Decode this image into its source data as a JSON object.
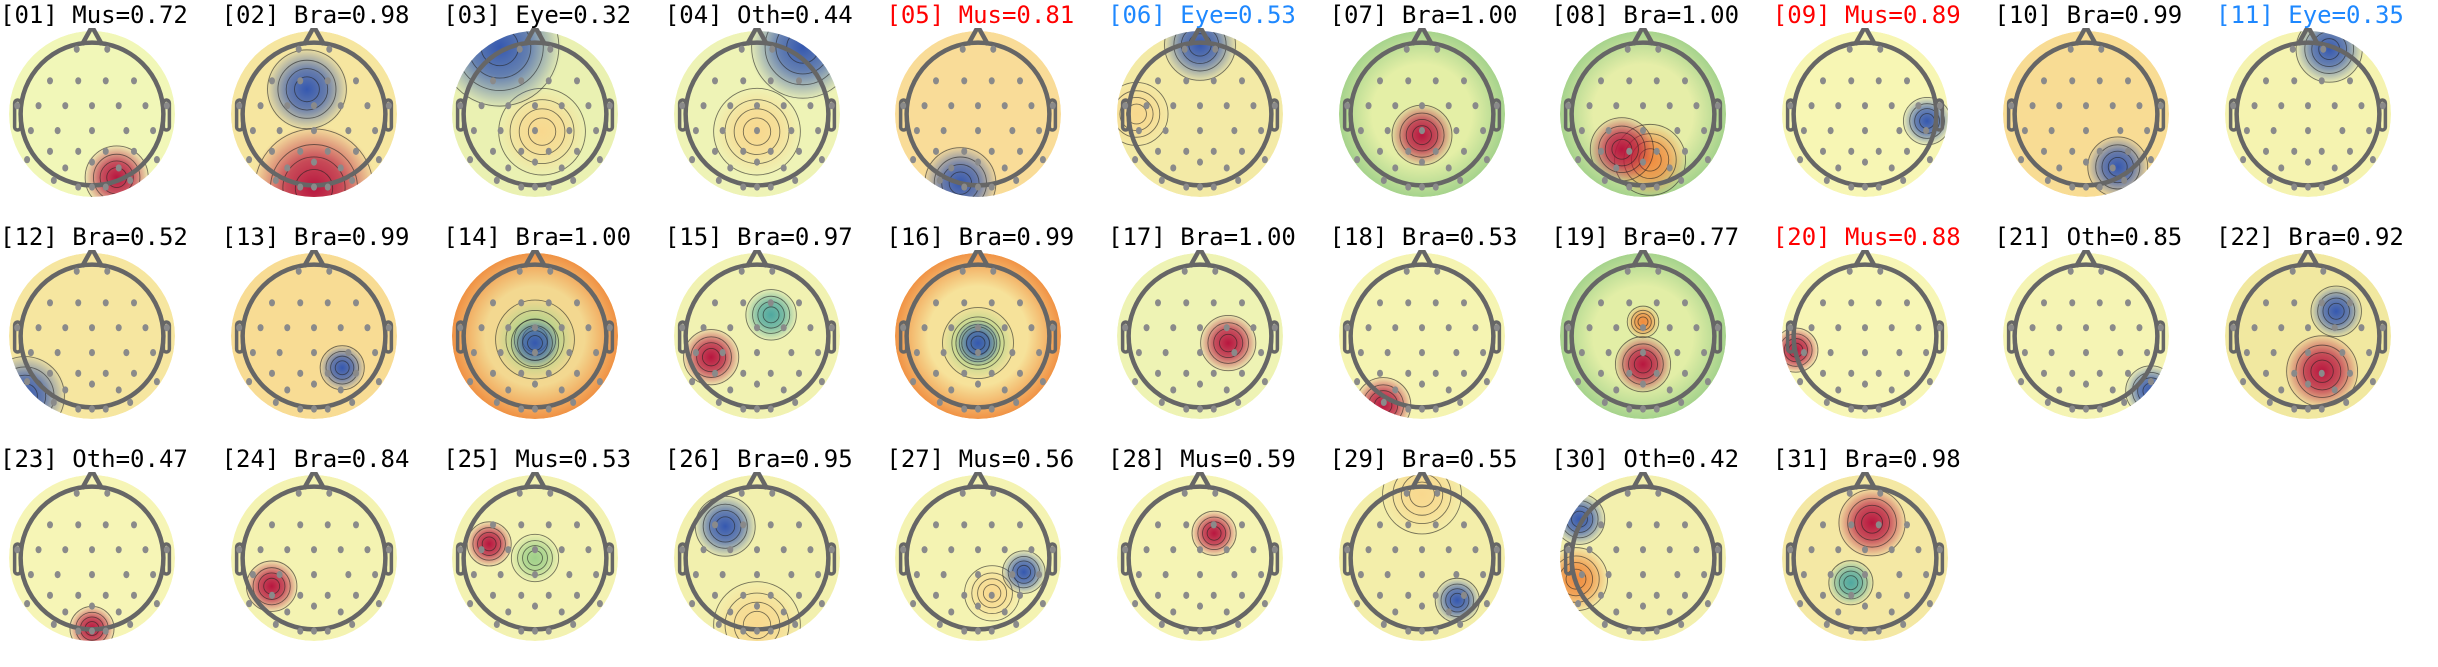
{
  "chart_data": {
    "type": "topomap",
    "colors": {
      "Mus": "#000000",
      "highlight_red": "#ff0000",
      "highlight_blue": "#1e88ff",
      "default": "#000000"
    },
    "colormap": "Spectral_r",
    "components": [
      {
        "title": "[01] Mus=0.72",
        "index": "01",
        "label": "Mus",
        "score": 0.72,
        "color": "#000000"
      },
      {
        "title": "[02] Bra=0.98",
        "index": "02",
        "label": "Bra",
        "score": 0.98,
        "color": "#000000"
      },
      {
        "title": "[03] Eye=0.32",
        "index": "03",
        "label": "Eye",
        "score": 0.32,
        "color": "#000000"
      },
      {
        "title": "[04] Oth=0.44",
        "index": "04",
        "label": "Oth",
        "score": 0.44,
        "color": "#000000"
      },
      {
        "title": "[05] Mus=0.81",
        "index": "05",
        "label": "Mus",
        "score": 0.81,
        "color": "#ff0000"
      },
      {
        "title": "[06] Eye=0.53",
        "index": "06",
        "label": "Eye",
        "score": 0.53,
        "color": "#1e88ff"
      },
      {
        "title": "[07] Bra=1.00",
        "index": "07",
        "label": "Bra",
        "score": 1.0,
        "color": "#000000"
      },
      {
        "title": "[08] Bra=1.00",
        "index": "08",
        "label": "Bra",
        "score": 1.0,
        "color": "#000000"
      },
      {
        "title": "[09] Mus=0.89",
        "index": "09",
        "label": "Mus",
        "score": 0.89,
        "color": "#ff0000"
      },
      {
        "title": "[10] Bra=0.99",
        "index": "10",
        "label": "Bra",
        "score": 0.99,
        "color": "#000000"
      },
      {
        "title": "[11] Eye=0.35",
        "index": "11",
        "label": "Eye",
        "score": 0.35,
        "color": "#1e88ff"
      },
      {
        "title": "[12] Bra=0.52",
        "index": "12",
        "label": "Bra",
        "score": 0.52,
        "color": "#000000"
      },
      {
        "title": "[13] Bra=0.99",
        "index": "13",
        "label": "Bra",
        "score": 0.99,
        "color": "#000000"
      },
      {
        "title": "[14] Bra=1.00",
        "index": "14",
        "label": "Bra",
        "score": 1.0,
        "color": "#000000"
      },
      {
        "title": "[15] Bra=0.97",
        "index": "15",
        "label": "Bra",
        "score": 0.97,
        "color": "#000000"
      },
      {
        "title": "[16] Bra=0.99",
        "index": "16",
        "label": "Bra",
        "score": 0.99,
        "color": "#000000"
      },
      {
        "title": "[17] Bra=1.00",
        "index": "17",
        "label": "Bra",
        "score": 1.0,
        "color": "#000000"
      },
      {
        "title": "[18] Bra=0.53",
        "index": "18",
        "label": "Bra",
        "score": 0.53,
        "color": "#000000"
      },
      {
        "title": "[19] Bra=0.77",
        "index": "19",
        "label": "Bra",
        "score": 0.77,
        "color": "#000000"
      },
      {
        "title": "[20] Mus=0.88",
        "index": "20",
        "label": "Mus",
        "score": 0.88,
        "color": "#ff0000"
      },
      {
        "title": "[21] Oth=0.85",
        "index": "21",
        "label": "Oth",
        "score": 0.85,
        "color": "#000000"
      },
      {
        "title": "[22] Bra=0.92",
        "index": "22",
        "label": "Bra",
        "score": 0.92,
        "color": "#000000"
      },
      {
        "title": "[23] Oth=0.47",
        "index": "23",
        "label": "Oth",
        "score": 0.47,
        "color": "#000000"
      },
      {
        "title": "[24] Bra=0.84",
        "index": "24",
        "label": "Bra",
        "score": 0.84,
        "color": "#000000"
      },
      {
        "title": "[25] Mus=0.53",
        "index": "25",
        "label": "Mus",
        "score": 0.53,
        "color": "#000000"
      },
      {
        "title": "[26] Bra=0.95",
        "index": "26",
        "label": "Bra",
        "score": 0.95,
        "color": "#000000"
      },
      {
        "title": "[27] Mus=0.56",
        "index": "27",
        "label": "Mus",
        "score": 0.56,
        "color": "#000000"
      },
      {
        "title": "[28] Mus=0.59",
        "index": "28",
        "label": "Mus",
        "score": 0.59,
        "color": "#000000"
      },
      {
        "title": "[29] Bra=0.55",
        "index": "29",
        "label": "Bra",
        "score": 0.55,
        "color": "#000000"
      },
      {
        "title": "[30] Oth=0.42",
        "index": "30",
        "label": "Oth",
        "score": 0.42,
        "color": "#000000"
      },
      {
        "title": "[31] Bra=0.98",
        "index": "31",
        "label": "Bra",
        "score": 0.98,
        "color": "#000000"
      }
    ]
  }
}
